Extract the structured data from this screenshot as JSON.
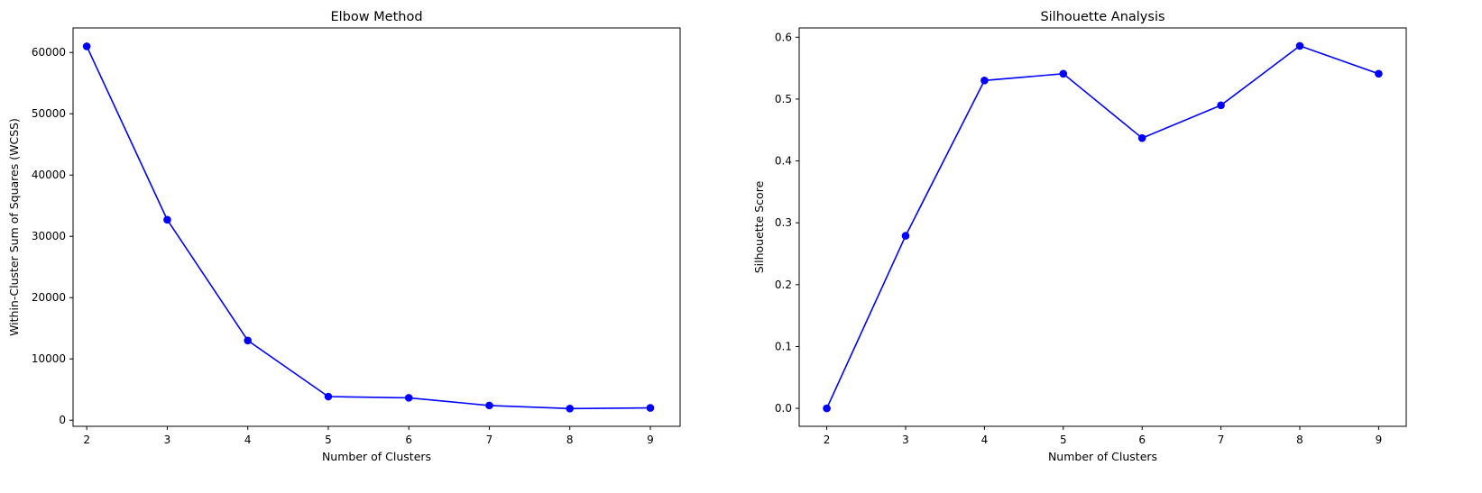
{
  "charts": [
    {
      "type": "line",
      "title": "Elbow Method",
      "xlabel": "Number of Clusters",
      "ylabel": "Within-Cluster Sum of Squares (WCSS)",
      "x": [
        2,
        3,
        4,
        5,
        6,
        7,
        8,
        9
      ],
      "y": [
        61000,
        32700,
        13000,
        3850,
        3650,
        2400,
        1900,
        2000
      ],
      "xlim": [
        1.83,
        9.37
      ],
      "ylim": [
        -1000,
        64000
      ],
      "xticks": [
        2,
        3,
        4,
        5,
        6,
        7,
        8,
        9
      ],
      "yticks": [
        0,
        10000,
        20000,
        30000,
        40000,
        50000,
        60000
      ],
      "yticklabels": [
        "0",
        "10000",
        "20000",
        "30000",
        "40000",
        "50000",
        "60000"
      ],
      "color": "#0000ff",
      "marker": "circle",
      "grid": false
    },
    {
      "type": "line",
      "title": "Silhouette Analysis",
      "xlabel": "Number of Clusters",
      "ylabel": "Silhouette Score",
      "x": [
        2,
        3,
        4,
        5,
        6,
        7,
        8,
        9
      ],
      "y": [
        0.0,
        0.279,
        0.53,
        0.541,
        0.437,
        0.49,
        0.586,
        0.541
      ],
      "xlim": [
        1.65,
        9.35
      ],
      "ylim": [
        -0.029,
        0.615
      ],
      "xticks": [
        2,
        3,
        4,
        5,
        6,
        7,
        8,
        9
      ],
      "yticks": [
        0.0,
        0.1,
        0.2,
        0.3,
        0.4,
        0.5,
        0.6
      ],
      "yticklabels": [
        "0.0",
        "0.1",
        "0.2",
        "0.3",
        "0.4",
        "0.5",
        "0.6"
      ],
      "color": "#0000ff",
      "marker": "circle",
      "grid": false
    }
  ]
}
